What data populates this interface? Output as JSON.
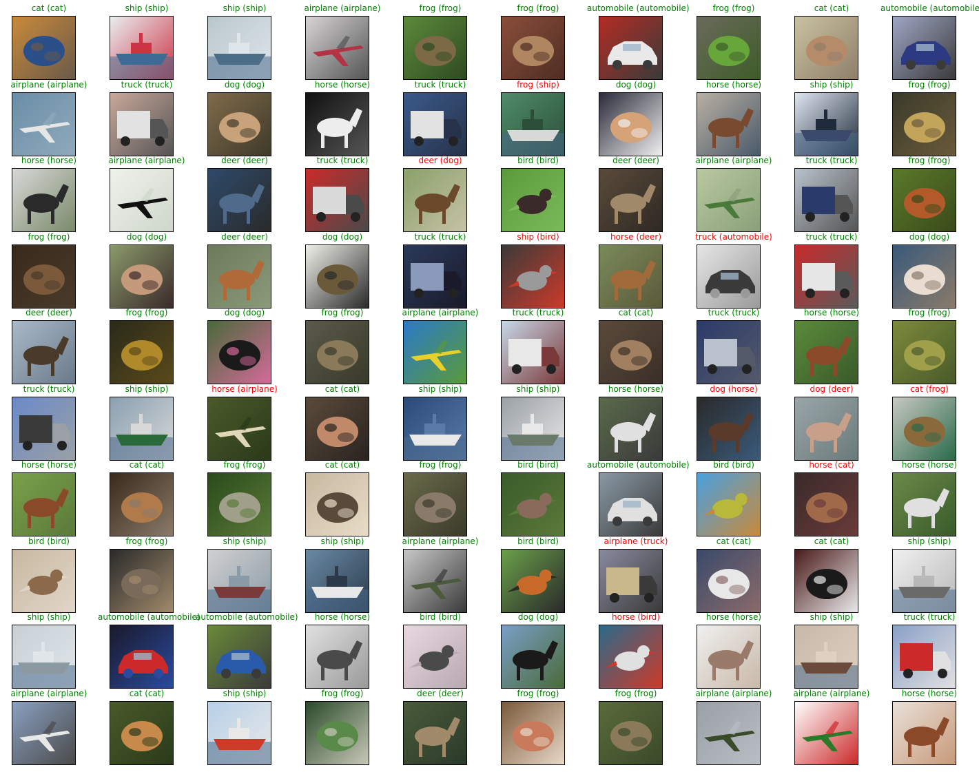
{
  "colors": {
    "correct": "#008000",
    "incorrect": "#ff0000",
    "frame": "#000000",
    "background": "#ffffff"
  },
  "images": [
    {
      "pred": "cat",
      "true": "cat",
      "title": "cat (cat)",
      "colors": [
        "#c98a3a",
        "#2b4f88",
        "#6a5a4a"
      ],
      "motif": "blob"
    },
    {
      "pred": "ship",
      "true": "ship",
      "title": "ship (ship)",
      "colors": [
        "#e9eef0",
        "#3e6a96",
        "#cc3344"
      ],
      "motif": "boat"
    },
    {
      "pred": "ship",
      "true": "ship",
      "title": "ship (ship)",
      "colors": [
        "#b9c7cc",
        "#4c6d87",
        "#dfe6ea"
      ],
      "motif": "boat"
    },
    {
      "pred": "airplane",
      "true": "airplane",
      "title": "airplane (airplane)",
      "colors": [
        "#d7d4d6",
        "#b33344",
        "#555555"
      ],
      "motif": "plane"
    },
    {
      "pred": "frog",
      "true": "frog",
      "title": "frog (frog)",
      "colors": [
        "#5c8a3a",
        "#7b6a45",
        "#2f4a22"
      ],
      "motif": "blob"
    },
    {
      "pred": "frog",
      "true": "frog",
      "title": "frog (frog)",
      "colors": [
        "#8a4e3a",
        "#b08660",
        "#4f2d23"
      ],
      "motif": "blob"
    },
    {
      "pred": "automobile",
      "true": "automobile",
      "title": "automobile (automobile)",
      "colors": [
        "#b42c23",
        "#e9e9e9",
        "#3a3a3a"
      ],
      "motif": "car"
    },
    {
      "pred": "frog",
      "true": "frog",
      "title": "frog (frog)",
      "colors": [
        "#6a6a5a",
        "#66a63a",
        "#3f5c2a"
      ],
      "motif": "blob"
    },
    {
      "pred": "cat",
      "true": "cat",
      "title": "cat (cat)",
      "colors": [
        "#c8c2a0",
        "#b58b6a",
        "#8f7f6a"
      ],
      "motif": "blob"
    },
    {
      "pred": "automobile",
      "true": "automobile",
      "title": "automobile (automobile)",
      "colors": [
        "#9fa6c4",
        "#2c3a84",
        "#3a3a3a"
      ],
      "motif": "car"
    },
    {
      "pred": "airplane",
      "true": "airplane",
      "title": "airplane (airplane)",
      "colors": [
        "#6a8ea8",
        "#e6e6e6",
        "#90a9bb"
      ],
      "motif": "plane"
    },
    {
      "pred": "truck",
      "true": "truck",
      "title": "truck (truck)",
      "colors": [
        "#c9a89a",
        "#e2e2e2",
        "#555555"
      ],
      "motif": "truck"
    },
    {
      "pred": "dog",
      "true": "dog",
      "title": "dog (dog)",
      "colors": [
        "#7f6a4a",
        "#c8a27a",
        "#3f3a2a"
      ],
      "motif": "blob"
    },
    {
      "pred": "horse",
      "true": "horse",
      "title": "horse (horse)",
      "colors": [
        "#111111",
        "#ededed",
        "#555555"
      ],
      "motif": "animal"
    },
    {
      "pred": "truck",
      "true": "truck",
      "title": "truck (truck)",
      "colors": [
        "#3a5a8a",
        "#e2e2e2",
        "#27324a"
      ],
      "motif": "truck"
    },
    {
      "pred": "frog",
      "true": "ship",
      "title": "frog (ship)",
      "colors": [
        "#4f8c6a",
        "#d8d8d8",
        "#2c4f3a"
      ],
      "motif": "boat"
    },
    {
      "pred": "dog",
      "true": "dog",
      "title": "dog (dog)",
      "colors": [
        "#2a2a3a",
        "#d6a277",
        "#f0f0f0"
      ],
      "motif": "blob"
    },
    {
      "pred": "horse",
      "true": "horse",
      "title": "horse (horse)",
      "colors": [
        "#b9b0a3",
        "#7a4a30",
        "#4a5a6a"
      ],
      "motif": "animal"
    },
    {
      "pred": "ship",
      "true": "ship",
      "title": "ship (ship)",
      "colors": [
        "#dfe6f0",
        "#3a4a6a",
        "#1f2a3a"
      ],
      "motif": "boat"
    },
    {
      "pred": "frog",
      "true": "frog",
      "title": "frog (frog)",
      "colors": [
        "#3a3a2a",
        "#c2a45a",
        "#6a5a3a"
      ],
      "motif": "blob"
    },
    {
      "pred": "horse",
      "true": "horse",
      "title": "horse (horse)",
      "colors": [
        "#d8d8d8",
        "#2a2a2a",
        "#7a8a6a"
      ],
      "motif": "animal"
    },
    {
      "pred": "airplane",
      "true": "airplane",
      "title": "airplane (airplane)",
      "colors": [
        "#eef3ea",
        "#111111",
        "#cfd6cc"
      ],
      "motif": "plane"
    },
    {
      "pred": "deer",
      "true": "deer",
      "title": "deer (deer)",
      "colors": [
        "#2e4a6a",
        "#4f6a8a",
        "#2a2a2a"
      ],
      "motif": "animal"
    },
    {
      "pred": "truck",
      "true": "truck",
      "title": "truck (truck)",
      "colors": [
        "#cc2a2a",
        "#dadada",
        "#4a4a4a"
      ],
      "motif": "truck"
    },
    {
      "pred": "deer",
      "true": "dog",
      "title": "deer (dog)",
      "colors": [
        "#8aa06a",
        "#6a4a2a",
        "#c6c2a6"
      ],
      "motif": "animal"
    },
    {
      "pred": "bird",
      "true": "bird",
      "title": "bird (bird)",
      "colors": [
        "#5a9a3a",
        "#3a2a2a",
        "#7aba5a"
      ],
      "motif": "bird"
    },
    {
      "pred": "deer",
      "true": "deer",
      "title": "deer (deer)",
      "colors": [
        "#5a4a3a",
        "#a08a6a",
        "#2f2a24"
      ],
      "motif": "animal"
    },
    {
      "pred": "airplane",
      "true": "airplane",
      "title": "airplane (airplane)",
      "colors": [
        "#b9c8a0",
        "#4a7a3a",
        "#8aa07a"
      ],
      "motif": "plane"
    },
    {
      "pred": "truck",
      "true": "truck",
      "title": "truck (truck)",
      "colors": [
        "#b9c2cc",
        "#2a3a6a",
        "#555555"
      ],
      "motif": "truck"
    },
    {
      "pred": "frog",
      "true": "frog",
      "title": "frog (frog)",
      "colors": [
        "#5a7a2a",
        "#b45a2a",
        "#3a4a1a"
      ],
      "motif": "blob"
    },
    {
      "pred": "frog",
      "true": "frog",
      "title": "frog (frog)",
      "colors": [
        "#3a2a1a",
        "#7a5a3a",
        "#4a3a2a"
      ],
      "motif": "blob"
    },
    {
      "pred": "dog",
      "true": "dog",
      "title": "dog (dog)",
      "colors": [
        "#8a9a6a",
        "#c49a7a",
        "#3a2a2a"
      ],
      "motif": "blob"
    },
    {
      "pred": "deer",
      "true": "deer",
      "title": "deer (deer)",
      "colors": [
        "#6a7a5a",
        "#b06a3a",
        "#8a9a7a"
      ],
      "motif": "animal"
    },
    {
      "pred": "dog",
      "true": "dog",
      "title": "dog (dog)",
      "colors": [
        "#f0f0ea",
        "#6a5a3a",
        "#2a2a2a"
      ],
      "motif": "blob"
    },
    {
      "pred": "truck",
      "true": "truck",
      "title": "truck (truck)",
      "colors": [
        "#2a3a5a",
        "#8a9aba",
        "#1a1a2a"
      ],
      "motif": "truck"
    },
    {
      "pred": "ship",
      "true": "bird",
      "title": "ship (bird)",
      "colors": [
        "#3a3a3a",
        "#9a9a9a",
        "#cc3a2a"
      ],
      "motif": "bird"
    },
    {
      "pred": "horse",
      "true": "deer",
      "title": "horse (deer)",
      "colors": [
        "#7a8a5a",
        "#a06a3a",
        "#5a5a3a"
      ],
      "motif": "animal"
    },
    {
      "pred": "truck",
      "true": "automobile",
      "title": "truck (automobile)",
      "colors": [
        "#e6e6e6",
        "#3a3a3a",
        "#9a9a9a"
      ],
      "motif": "car"
    },
    {
      "pred": "truck",
      "true": "truck",
      "title": "truck (truck)",
      "colors": [
        "#c82a2a",
        "#e6e6e6",
        "#5a5a5a"
      ],
      "motif": "truck"
    },
    {
      "pred": "dog",
      "true": "dog",
      "title": "dog (dog)",
      "colors": [
        "#3a5a7a",
        "#e8ddd0",
        "#8a7a6a"
      ],
      "motif": "blob"
    },
    {
      "pred": "deer",
      "true": "deer",
      "title": "deer (deer)",
      "colors": [
        "#aab8c8",
        "#4a3a2a",
        "#6a7a8a"
      ],
      "motif": "animal"
    },
    {
      "pred": "frog",
      "true": "frog",
      "title": "frog (frog)",
      "colors": [
        "#2a2a1a",
        "#b08a2a",
        "#5a4a1a"
      ],
      "motif": "blob"
    },
    {
      "pred": "dog",
      "true": "dog",
      "title": "dog (dog)",
      "colors": [
        "#4a6a3a",
        "#1a1a1a",
        "#d46a9a"
      ],
      "motif": "blob"
    },
    {
      "pred": "frog",
      "true": "frog",
      "title": "frog (frog)",
      "colors": [
        "#5a5a4a",
        "#8a7a5a",
        "#3a3a2a"
      ],
      "motif": "blob"
    },
    {
      "pred": "airplane",
      "true": "airplane",
      "title": "airplane (airplane)",
      "colors": [
        "#2a7ac8",
        "#e8d02a",
        "#5a9a3a"
      ],
      "motif": "plane"
    },
    {
      "pred": "truck",
      "true": "truck",
      "title": "truck (truck)",
      "colors": [
        "#c8d8e8",
        "#e8e8e8",
        "#7a3a3a"
      ],
      "motif": "truck"
    },
    {
      "pred": "cat",
      "true": "cat",
      "title": "cat (cat)",
      "colors": [
        "#5a4a3a",
        "#a08060",
        "#3a2f28"
      ],
      "motif": "blob"
    },
    {
      "pred": "truck",
      "true": "truck",
      "title": "truck (truck)",
      "colors": [
        "#2a3a6a",
        "#b9c2cc",
        "#555a6a"
      ],
      "motif": "truck"
    },
    {
      "pred": "horse",
      "true": "horse",
      "title": "horse (horse)",
      "colors": [
        "#5a8a3a",
        "#8a4a2a",
        "#3a5a2a"
      ],
      "motif": "animal"
    },
    {
      "pred": "frog",
      "true": "frog",
      "title": "frog (frog)",
      "colors": [
        "#7a8a3a",
        "#a0a04a",
        "#4a5a2a"
      ],
      "motif": "blob"
    },
    {
      "pred": "truck",
      "true": "truck",
      "title": "truck (truck)",
      "colors": [
        "#6a8ac8",
        "#3a3a3a",
        "#9aa0a6"
      ],
      "motif": "truck"
    },
    {
      "pred": "ship",
      "true": "ship",
      "title": "ship (ship)",
      "colors": [
        "#8aa0b0",
        "#2a6a3a",
        "#d8d8d8"
      ],
      "motif": "boat"
    },
    {
      "pred": "horse",
      "true": "airplane",
      "title": "horse (airplane)",
      "colors": [
        "#4a5a2a",
        "#e0d6b8",
        "#2a3a1a"
      ],
      "motif": "plane"
    },
    {
      "pred": "cat",
      "true": "cat",
      "title": "cat (cat)",
      "colors": [
        "#5a4a3a",
        "#c08a6a",
        "#2a2420"
      ],
      "motif": "blob"
    },
    {
      "pred": "ship",
      "true": "ship",
      "title": "ship (ship)",
      "colors": [
        "#2a4a7a",
        "#e8e8e8",
        "#5a7aa8"
      ],
      "motif": "boat"
    },
    {
      "pred": "ship",
      "true": "ship",
      "title": "ship (ship)",
      "colors": [
        "#9aa0a6",
        "#6a7a6a",
        "#e8e8e8"
      ],
      "motif": "boat"
    },
    {
      "pred": "horse",
      "true": "horse",
      "title": "horse (horse)",
      "colors": [
        "#5a6a4a",
        "#e0e0e0",
        "#3a3a3a"
      ],
      "motif": "animal"
    },
    {
      "pred": "dog",
      "true": "horse",
      "title": "dog (horse)",
      "colors": [
        "#2a2a2a",
        "#5a3a2a",
        "#3a5a7a"
      ],
      "motif": "animal"
    },
    {
      "pred": "dog",
      "true": "deer",
      "title": "dog (deer)",
      "colors": [
        "#9aa6aa",
        "#c8a08a",
        "#6a7a7a"
      ],
      "motif": "animal"
    },
    {
      "pred": "cat",
      "true": "frog",
      "title": "cat (frog)",
      "colors": [
        "#c8c8c2",
        "#8a6a3a",
        "#2a6a4a"
      ],
      "motif": "blob"
    },
    {
      "pred": "horse",
      "true": "horse",
      "title": "horse (horse)",
      "colors": [
        "#7aa04a",
        "#8a4a2a",
        "#5a7a3a"
      ],
      "motif": "animal"
    },
    {
      "pred": "cat",
      "true": "cat",
      "title": "cat (cat)",
      "colors": [
        "#3a2a1a",
        "#b07a4a",
        "#8a7a6a"
      ],
      "motif": "blob"
    },
    {
      "pred": "frog",
      "true": "frog",
      "title": "frog (frog)",
      "colors": [
        "#2a4a1a",
        "#a0a08a",
        "#5a7a3a"
      ],
      "motif": "blob"
    },
    {
      "pred": "cat",
      "true": "cat",
      "title": "cat (cat)",
      "colors": [
        "#c8b8a0",
        "#5a4a3a",
        "#e8dcc8"
      ],
      "motif": "blob"
    },
    {
      "pred": "frog",
      "true": "frog",
      "title": "frog (frog)",
      "colors": [
        "#6a6a4a",
        "#8a7a6a",
        "#3a3a2a"
      ],
      "motif": "blob"
    },
    {
      "pred": "bird",
      "true": "bird",
      "title": "bird (bird)",
      "colors": [
        "#3a5a2a",
        "#8a6a5a",
        "#5a7a3a"
      ],
      "motif": "bird"
    },
    {
      "pred": "automobile",
      "true": "automobile",
      "title": "automobile (automobile)",
      "colors": [
        "#8a9aa6",
        "#e0e0e0",
        "#3a3a3a"
      ],
      "motif": "car"
    },
    {
      "pred": "bird",
      "true": "bird",
      "title": "bird (bird)",
      "colors": [
        "#4aa0e0",
        "#b8b83a",
        "#c88a3a"
      ],
      "motif": "bird"
    },
    {
      "pred": "horse",
      "true": "cat",
      "title": "horse (cat)",
      "colors": [
        "#3a2a2a",
        "#a06a4a",
        "#6a3a3a"
      ],
      "motif": "blob"
    },
    {
      "pred": "horse",
      "true": "horse",
      "title": "horse (horse)",
      "colors": [
        "#6a8a4a",
        "#e0e0e0",
        "#3a5a2a"
      ],
      "motif": "animal"
    },
    {
      "pred": "bird",
      "true": "bird",
      "title": "bird (bird)",
      "colors": [
        "#c8b8a0",
        "#8a6a4a",
        "#e0d6c8"
      ],
      "motif": "bird"
    },
    {
      "pred": "frog",
      "true": "frog",
      "title": "frog (frog)",
      "colors": [
        "#2a2a2a",
        "#7a6a5a",
        "#a08a6a"
      ],
      "motif": "blob"
    },
    {
      "pred": "ship",
      "true": "ship",
      "title": "ship (ship)",
      "colors": [
        "#d0d0d0",
        "#7a3a3a",
        "#8a9aa6"
      ],
      "motif": "boat"
    },
    {
      "pred": "ship",
      "true": "ship",
      "title": "ship (ship)",
      "colors": [
        "#6a8aa6",
        "#e8e8e8",
        "#2a3a4a"
      ],
      "motif": "boat"
    },
    {
      "pred": "airplane",
      "true": "airplane",
      "title": "airplane (airplane)",
      "colors": [
        "#c8c8c8",
        "#4a5a3a",
        "#3a3a3a"
      ],
      "motif": "plane"
    },
    {
      "pred": "bird",
      "true": "bird",
      "title": "bird (bird)",
      "colors": [
        "#6aa04a",
        "#c86a2a",
        "#2a2a2a"
      ],
      "motif": "bird"
    },
    {
      "pred": "airplane",
      "true": "truck",
      "title": "airplane (truck)",
      "colors": [
        "#8a8aa0",
        "#c8b88a",
        "#3a3a3a"
      ],
      "motif": "truck"
    },
    {
      "pred": "cat",
      "true": "cat",
      "title": "cat (cat)",
      "colors": [
        "#3a4a6a",
        "#e8e8e8",
        "#8a6a6a"
      ],
      "motif": "blob"
    },
    {
      "pred": "cat",
      "true": "cat",
      "title": "cat (cat)",
      "colors": [
        "#4a1a1a",
        "#1a1a1a",
        "#e8e8e8"
      ],
      "motif": "blob"
    },
    {
      "pred": "ship",
      "true": "ship",
      "title": "ship (ship)",
      "colors": [
        "#f0f0f0",
        "#6a6a6a",
        "#b8b8b8"
      ],
      "motif": "boat"
    },
    {
      "pred": "ship",
      "true": "ship",
      "title": "ship (ship)",
      "colors": [
        "#c8d0d6",
        "#8a9aa0",
        "#e0e6ea"
      ],
      "motif": "boat"
    },
    {
      "pred": "automobile",
      "true": "automobile",
      "title": "automobile (automobile)",
      "colors": [
        "#1a1a2a",
        "#cc2a2a",
        "#2a4aa0"
      ],
      "motif": "car"
    },
    {
      "pred": "automobile",
      "true": "automobile",
      "title": "automobile (automobile)",
      "colors": [
        "#6a8a3a",
        "#2a5aaa",
        "#3a3a3a"
      ],
      "motif": "car"
    },
    {
      "pred": "horse",
      "true": "horse",
      "title": "horse (horse)",
      "colors": [
        "#e0e0e0",
        "#4a4a4a",
        "#9a9a9a"
      ],
      "motif": "animal"
    },
    {
      "pred": "bird",
      "true": "bird",
      "title": "bird (bird)",
      "colors": [
        "#e8d8e0",
        "#4a4a4a",
        "#b8a8b0"
      ],
      "motif": "bird"
    },
    {
      "pred": "dog",
      "true": "dog",
      "title": "dog (dog)",
      "colors": [
        "#7aa0c8",
        "#1a1a1a",
        "#4a6a3a"
      ],
      "motif": "animal"
    },
    {
      "pred": "horse",
      "true": "bird",
      "title": "horse (bird)",
      "colors": [
        "#2a6a8a",
        "#e0e0e0",
        "#cc3a2a"
      ],
      "motif": "bird"
    },
    {
      "pred": "horse",
      "true": "horse",
      "title": "horse (horse)",
      "colors": [
        "#f0f0f0",
        "#9a7a6a",
        "#c8b8a8"
      ],
      "motif": "animal"
    },
    {
      "pred": "ship",
      "true": "ship",
      "title": "ship (ship)",
      "colors": [
        "#c8b8a8",
        "#6a4a3a",
        "#e0d0c0"
      ],
      "motif": "boat"
    },
    {
      "pred": "truck",
      "true": "truck",
      "title": "truck (truck)",
      "colors": [
        "#8aa0c8",
        "#cc2a2a",
        "#e0e0e0"
      ],
      "motif": "truck"
    },
    {
      "pred": "airplane",
      "true": "airplane",
      "title": "airplane (airplane)",
      "colors": [
        "#8aa0c0",
        "#e8e8e8",
        "#4a4a4a"
      ],
      "motif": "plane"
    },
    {
      "pred": "cat",
      "true": "cat",
      "title": "cat (cat)",
      "colors": [
        "#4a5a2a",
        "#c88a4a",
        "#2a3a1a"
      ],
      "motif": "blob"
    },
    {
      "pred": "ship",
      "true": "ship",
      "title": "ship (ship)",
      "colors": [
        "#b8d0e8",
        "#cc3a2a",
        "#e8e8e8"
      ],
      "motif": "boat"
    },
    {
      "pred": "frog",
      "true": "frog",
      "title": "frog (frog)",
      "colors": [
        "#2a4a2a",
        "#5a8a4a",
        "#c8c8b8"
      ],
      "motif": "blob"
    },
    {
      "pred": "deer",
      "true": "deer",
      "title": "deer (deer)",
      "colors": [
        "#4a5a3a",
        "#a08a6a",
        "#2a3a2a"
      ],
      "motif": "animal"
    },
    {
      "pred": "frog",
      "true": "frog",
      "title": "frog (frog)",
      "colors": [
        "#7a5a3a",
        "#c87a5a",
        "#e8d8c8"
      ],
      "motif": "blob"
    },
    {
      "pred": "frog",
      "true": "frog",
      "title": "frog (frog)",
      "colors": [
        "#5a6a3a",
        "#8a7a5a",
        "#3a4a2a"
      ],
      "motif": "blob"
    },
    {
      "pred": "airplane",
      "true": "airplane",
      "title": "airplane (airplane)",
      "colors": [
        "#9aa0a6",
        "#3a4a2a",
        "#b8bec4"
      ],
      "motif": "plane"
    },
    {
      "pred": "airplane",
      "true": "airplane",
      "title": "airplane (airplane)",
      "colors": [
        "#ffffff",
        "#2a7a2a",
        "#cc2a2a"
      ],
      "motif": "plane"
    },
    {
      "pred": "horse",
      "true": "horse",
      "title": "horse (horse)",
      "colors": [
        "#e8e0d8",
        "#8a4a2a",
        "#c89a7a"
      ],
      "motif": "animal"
    }
  ]
}
